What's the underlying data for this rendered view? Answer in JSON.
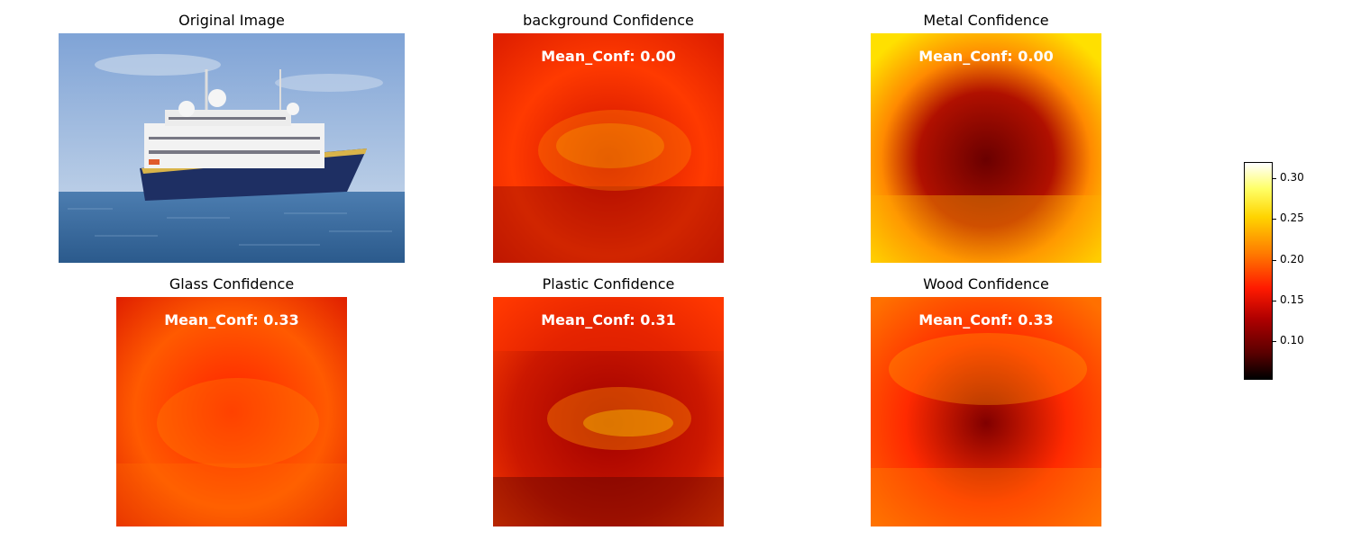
{
  "chart_data": {
    "type": "heatmap",
    "panels": [
      {
        "title": "Original Image",
        "kind": "photo"
      },
      {
        "title": "background Confidence",
        "annotation": "Mean_Conf: 0.00",
        "colors": [
          "#ff3a00",
          "#cc1000",
          "#7a0000"
        ]
      },
      {
        "title": "Metal Confidence",
        "annotation": "Mean_Conf: 0.00",
        "colors": [
          "#ffe000",
          "#ff8a00",
          "#6a0000"
        ]
      },
      {
        "title": "Glass Confidence",
        "annotation": "Mean_Conf: 0.33",
        "colors": [
          "#ff5a00",
          "#ff2000",
          "#990000"
        ]
      },
      {
        "title": "Plastic Confidence",
        "annotation": "Mean_Conf: 0.31",
        "colors": [
          "#ff4000",
          "#a00000",
          "#300000"
        ]
      },
      {
        "title": "Wood Confidence",
        "annotation": "Mean_Conf: 0.33",
        "colors": [
          "#ff7000",
          "#ff2a00",
          "#800000"
        ]
      }
    ],
    "colorbar": {
      "colormap": "hot",
      "range": [
        0.055,
        0.32
      ],
      "ticks": [
        "0.30",
        "0.25",
        "0.20",
        "0.15",
        "0.10"
      ],
      "tick_values": [
        0.3,
        0.25,
        0.2,
        0.15,
        0.1
      ]
    }
  }
}
